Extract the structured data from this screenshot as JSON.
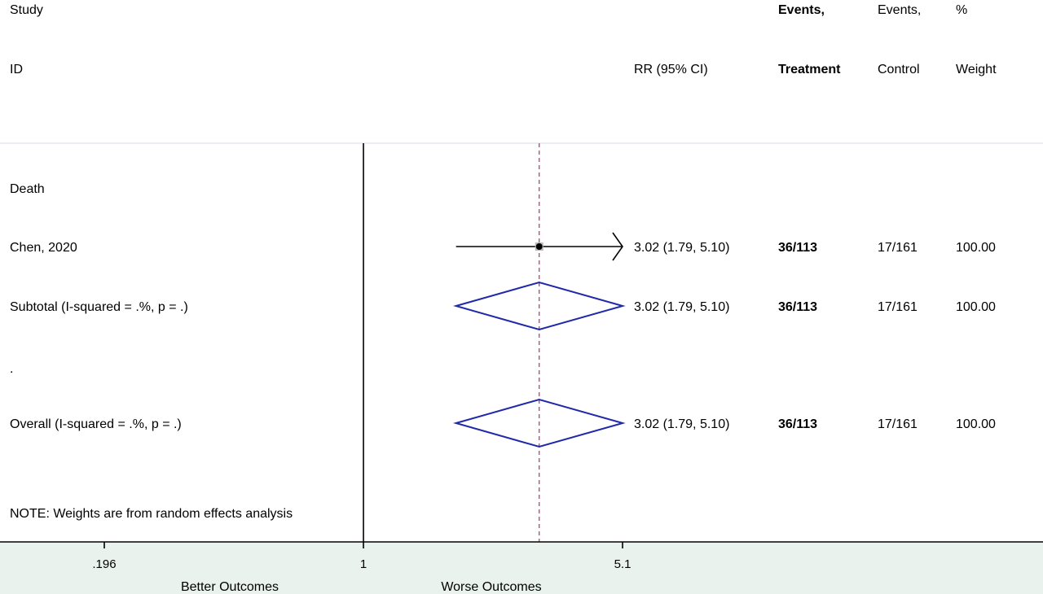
{
  "header": {
    "study": "Study",
    "id": "ID",
    "rr_ci": "RR (95% CI)",
    "events_treatment_1": "Events,",
    "events_treatment_2": "Treatment",
    "events_control_1": "Events,",
    "events_control_2": "Control",
    "weight_1": "%",
    "weight_2": "Weight"
  },
  "note": "NOTE: Weights are from random effects analysis",
  "colors": {
    "background": "#eaf2ee",
    "panel": "#ffffff",
    "diamond": "#1f2aa8",
    "reference_line": "#b0306f",
    "axis": "#000000"
  },
  "chart_data": {
    "type": "forest",
    "measure": "RR",
    "x_scale": "log",
    "null_value": 1,
    "xlim": [
      0.196,
      5.1
    ],
    "ticks": [
      {
        "value": 0.196,
        "label": ".196"
      },
      {
        "value": 1,
        "label": "1"
      },
      {
        "value": 5.1,
        "label": "5.1"
      }
    ],
    "xlabel_left": "Better Outcomes",
    "xlabel_right": "Worse Outcomes",
    "overall_estimate": 3.02,
    "rows": [
      {
        "kind": "group",
        "label": "Death"
      },
      {
        "kind": "study",
        "label": "Chen, 2020",
        "estimate": 3.02,
        "lower": 1.79,
        "upper": 5.1,
        "ci_text": "3.02 (1.79, 5.10)",
        "treatment": "36/113",
        "control": "17/161",
        "weight": "100.00"
      },
      {
        "kind": "subtotal",
        "label": "Subtotal  (I-squared = .%, p = .)",
        "estimate": 3.02,
        "lower": 1.79,
        "upper": 5.1,
        "ci_text": "3.02 (1.79, 5.10)",
        "treatment": "36/113",
        "control": "17/161",
        "weight": "100.00"
      },
      {
        "kind": "spacer",
        "label": "."
      },
      {
        "kind": "overall",
        "label": "Overall  (I-squared = .%, p = .)",
        "estimate": 3.02,
        "lower": 1.79,
        "upper": 5.1,
        "ci_text": "3.02 (1.79, 5.10)",
        "treatment": "36/113",
        "control": "17/161",
        "weight": "100.00"
      }
    ]
  }
}
